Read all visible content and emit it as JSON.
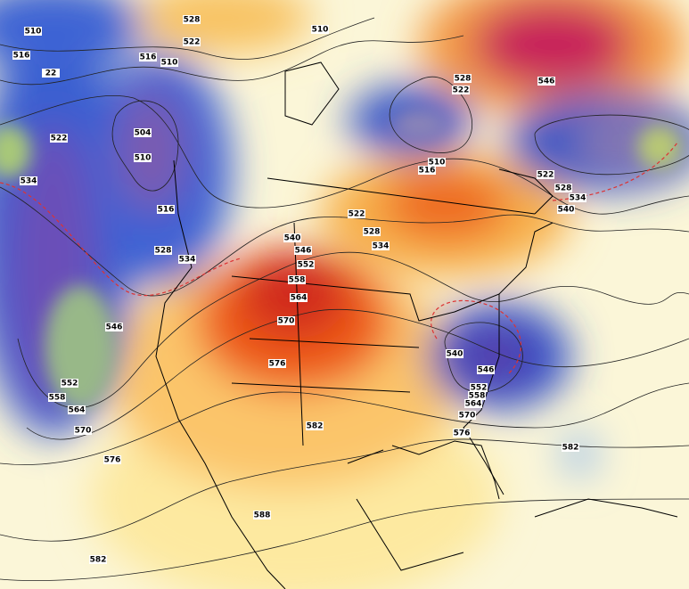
{
  "contour_labels": [
    "510",
    "516",
    "528",
    "522",
    "516",
    "510",
    "22",
    "504",
    "510",
    "522",
    "534",
    "516",
    "528",
    "534",
    "546",
    "552",
    "558",
    "564",
    "570",
    "576",
    "582",
    "588",
    "582",
    "576",
    "570",
    "564",
    "558",
    "552",
    "546",
    "540",
    "522",
    "528",
    "534",
    "510",
    "528",
    "522",
    "546",
    "510",
    "516",
    "522",
    "528",
    "534",
    "540",
    "540",
    "546",
    "552",
    "558",
    "564",
    "570",
    "576",
    "582"
  ]
}
